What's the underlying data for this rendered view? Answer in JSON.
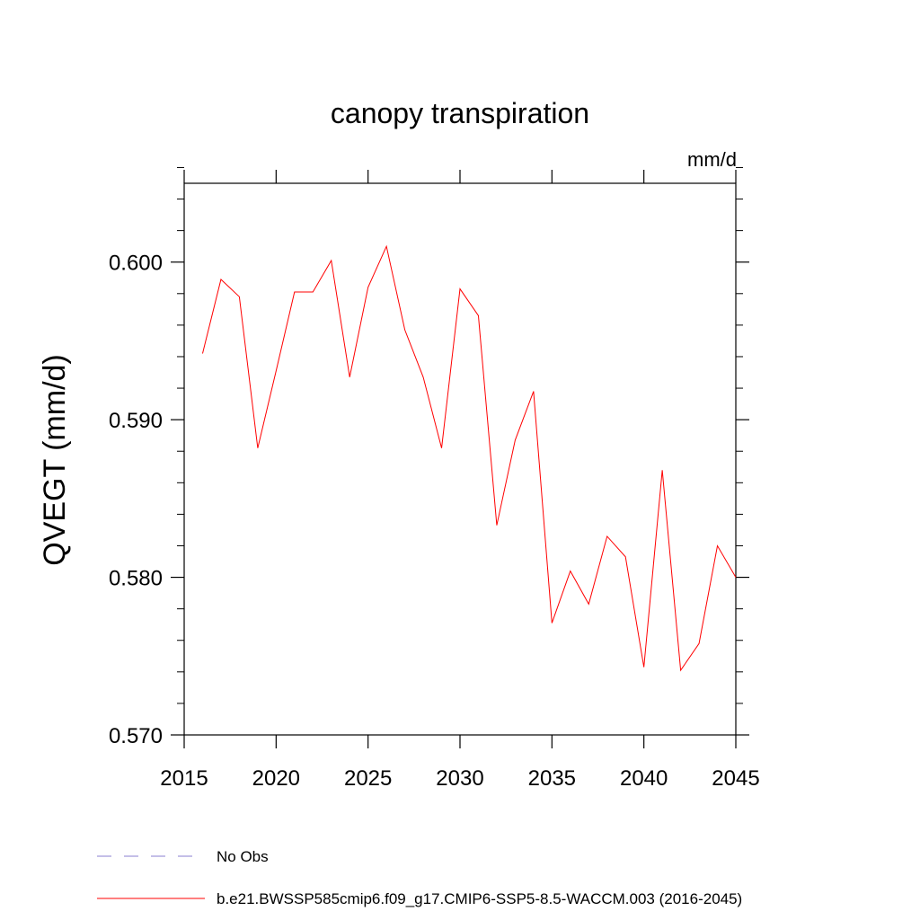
{
  "chart_data": {
    "type": "line",
    "title": "canopy transpiration",
    "units": "mm/d",
    "ylabel": "QVEGT  (mm/d)",
    "xlabel": "",
    "xlim": [
      2015,
      2045
    ],
    "ylim": [
      0.57,
      0.605
    ],
    "x_ticks": [
      2015,
      2020,
      2025,
      2030,
      2035,
      2040,
      2045
    ],
    "y_ticks": [
      "0.570",
      "0.580",
      "0.590",
      "0.600"
    ],
    "grid": false,
    "legend_position": "bottom",
    "series": [
      {
        "name": "b.e21.BWSSP585cmip6.f09_g17.CMIP6-SSP5-8.5-WACCM.003 (2016-2045)",
        "color": "#ff0000",
        "style": "solid",
        "x": [
          2016,
          2017,
          2018,
          2019,
          2020,
          2021,
          2022,
          2023,
          2024,
          2025,
          2026,
          2027,
          2028,
          2029,
          2030,
          2031,
          2032,
          2033,
          2034,
          2035,
          2036,
          2037,
          2038,
          2039,
          2040,
          2041,
          2042,
          2043,
          2044,
          2045
        ],
        "values": [
          0.5942,
          0.5989,
          0.5978,
          0.5882,
          0.5931,
          0.5981,
          0.5981,
          0.6001,
          0.5927,
          0.5984,
          0.601,
          0.5957,
          0.5927,
          0.5882,
          0.5983,
          0.5966,
          0.5833,
          0.5887,
          0.5918,
          0.5771,
          0.5804,
          0.5783,
          0.5826,
          0.5813,
          0.5743,
          0.5868,
          0.5741,
          0.5758,
          0.582,
          0.58
        ]
      }
    ],
    "legend": [
      {
        "label": "No Obs",
        "color": "#8a7fd0",
        "style": "dashed"
      },
      {
        "label": "b.e21.BWSSP585cmip6.f09_g17.CMIP6-SSP5-8.5-WACCM.003 (2016-2045)",
        "color": "#ff0000",
        "style": "solid"
      }
    ]
  }
}
